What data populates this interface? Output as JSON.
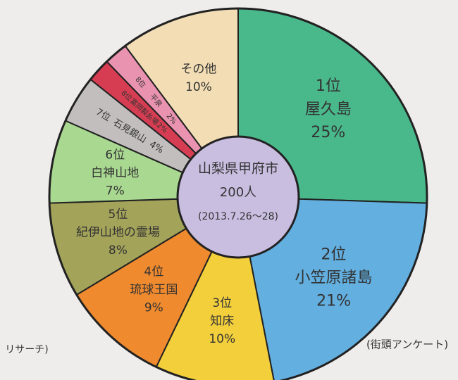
{
  "chart_data": {
    "type": "donut",
    "ranks": [
      "1位",
      "2位",
      "3位",
      "4位",
      "5位",
      "6位",
      "7位",
      "8位",
      "8位",
      null
    ],
    "categories": [
      "屋久島",
      "小笠原諸島",
      "知床",
      "琉球王国",
      "紀伊山地の霊場",
      "白神山地",
      "石見銀山",
      "富岡製糸場",
      "平泉",
      "その他"
    ],
    "values": [
      25,
      21,
      10,
      9,
      8,
      7,
      4,
      2,
      2,
      10
    ],
    "value_labels": [
      "25%",
      "21%",
      "10%",
      "9%",
      "8%",
      "7%",
      "4%",
      "2%",
      "2%",
      "10%"
    ],
    "colors": [
      "#49b98c",
      "#62afe0",
      "#f3cf3c",
      "#ef8a2e",
      "#a3a35a",
      "#a9d891",
      "#c2bebe",
      "#d73d52",
      "#ea93b0",
      "#f2ddb4"
    ],
    "center_lines": [
      "山梨県甲府市",
      "200人",
      "(2013.7.26〜28)"
    ],
    "note_left": "リサーチ)",
    "note_right": "(街頭アンケート)"
  }
}
